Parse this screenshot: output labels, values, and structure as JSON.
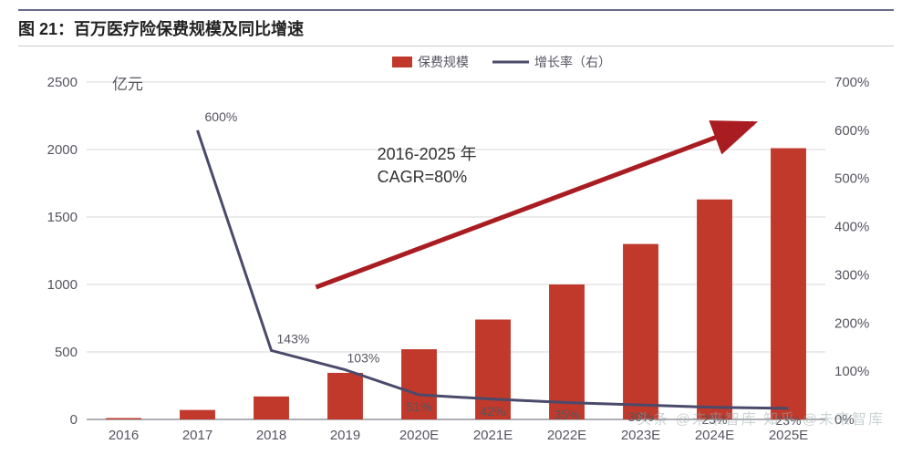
{
  "title": "图 21：百万医疗险保费规模及同比增速",
  "unit_label": "亿元",
  "legend": {
    "bar": "保费规模",
    "line": "增长率（右）"
  },
  "annotation": {
    "line1": "2016-2025 年",
    "line2": "CAGR=80%"
  },
  "categories": [
    "2016",
    "2017",
    "2018",
    "2019",
    "2020E",
    "2021E",
    "2022E",
    "2023E",
    "2024E",
    "2025E"
  ],
  "bar_values": [
    10,
    70,
    170,
    345,
    520,
    740,
    1000,
    1300,
    1630,
    2010
  ],
  "line_values_pct": [
    null,
    600,
    143,
    103,
    51,
    42,
    35,
    30,
    25,
    23
  ],
  "point_labels": [
    "",
    "600%",
    "143%",
    "103%",
    "51%",
    "42%",
    "35%",
    "30%",
    "25%",
    "23%"
  ],
  "y_left": {
    "min": 0,
    "max": 2500,
    "ticks": [
      0,
      500,
      1000,
      1500,
      2000,
      2500
    ]
  },
  "y_right": {
    "min": 0,
    "max": 700,
    "ticks_labels": [
      "0%",
      "100%",
      "200%",
      "300%",
      "400%",
      "500%",
      "600%",
      "700%"
    ],
    "ticks_values": [
      0,
      100,
      200,
      300,
      400,
      500,
      600,
      700
    ]
  },
  "colors": {
    "bar": "#c0392b",
    "line": "#4a4a6a",
    "grid": "#d7d7dc",
    "axis": "#7f7f8a",
    "text": "#555560",
    "title": "#222222",
    "arrow": "#a91d22",
    "background": "#ffffff"
  },
  "style": {
    "bar_width_ratio": 0.48,
    "line_width": 3,
    "grid_width": 1,
    "title_fontsize": 18,
    "axis_fontsize": 15,
    "annotation_fontsize": 18,
    "label_fontsize": 14,
    "legend_fontsize": 14
  },
  "watermark": "头条 @未来智库   知乎 @未来智库"
}
